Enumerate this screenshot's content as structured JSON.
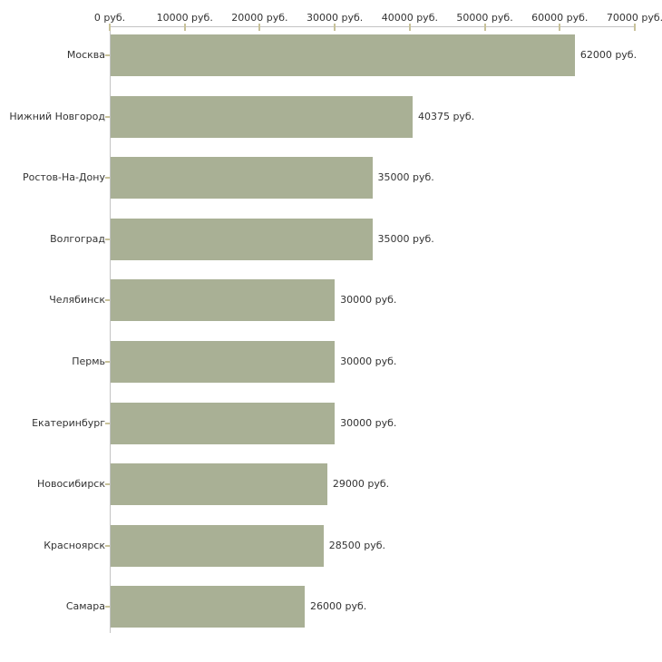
{
  "chart_data": {
    "type": "bar",
    "orientation": "horizontal",
    "title": "",
    "categories": [
      "Москва",
      "Нижний Новгород",
      "Ростов-На-Дону",
      "Волгоград",
      "Челябинск",
      "Пермь",
      "Екатеринбург",
      "Новосибирск",
      "Красноярск",
      "Самара"
    ],
    "values": [
      62000,
      40375,
      35000,
      35000,
      30000,
      30000,
      30000,
      29000,
      28500,
      26000
    ],
    "bar_labels": [
      "62000 руб.",
      "40375 руб.",
      "35000 руб.",
      "35000 руб.",
      "30000 руб.",
      "30000 руб.",
      "30000 руб.",
      "29000 руб.",
      "28500 руб.",
      "26000 руб."
    ],
    "x_axis": {
      "position": "top",
      "min": 0,
      "max": 70000,
      "tick_values": [
        0,
        10000,
        20000,
        30000,
        40000,
        50000,
        60000,
        70000
      ],
      "tick_labels": [
        "0 руб.",
        "10000 руб.",
        "20000 руб.",
        "30000 руб.",
        "40000 руб.",
        "50000 руб.",
        "60000 руб.",
        "70000 руб."
      ]
    },
    "grid": false,
    "legend": "none",
    "colors": {
      "bar": "#a9b095",
      "tick": "#c8c29a",
      "axis_line": "#c3c3c3",
      "text": "#333333",
      "background": "#ffffff"
    }
  }
}
